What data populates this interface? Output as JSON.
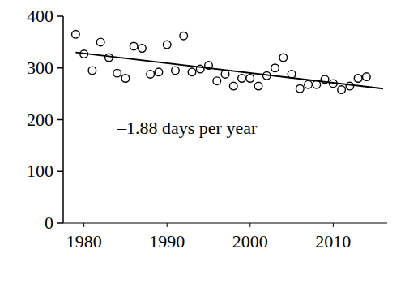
{
  "chart_data": {
    "type": "scatter",
    "annotation": "–1.88 days per year",
    "color": "#000000",
    "grid": false,
    "xlim": [
      1977.5,
      2016.5
    ],
    "xticks": [
      1980,
      1990,
      2000,
      2010
    ],
    "ylim": [
      0,
      400
    ],
    "yticks": [
      0,
      100,
      200,
      300,
      400
    ],
    "series": [
      {
        "type": "scatter",
        "marker": "circle",
        "color": "#000000",
        "x": [
          1979,
          1980,
          1981,
          1982,
          1983,
          1984,
          1985,
          1986,
          1987,
          1988,
          1989,
          1990,
          1991,
          1992,
          1993,
          1994,
          1995,
          1996,
          1997,
          1998,
          1999,
          2000,
          2001,
          2002,
          2003,
          2004,
          2005,
          2006,
          2007,
          2008,
          2009,
          2010,
          2011,
          2012,
          2013,
          2014
        ],
        "values": [
          365,
          327,
          295,
          350,
          320,
          290,
          280,
          342,
          338,
          288,
          292,
          345,
          295,
          362,
          292,
          298,
          305,
          275,
          288,
          265,
          280,
          280,
          265,
          285,
          300,
          320,
          288,
          260,
          268,
          268,
          278,
          270,
          258,
          265,
          280,
          283
        ]
      },
      {
        "type": "line",
        "line_style": "solid",
        "color": "#000000",
        "x": [
          1979,
          2016
        ],
        "values": [
          330,
          260
        ]
      }
    ]
  }
}
